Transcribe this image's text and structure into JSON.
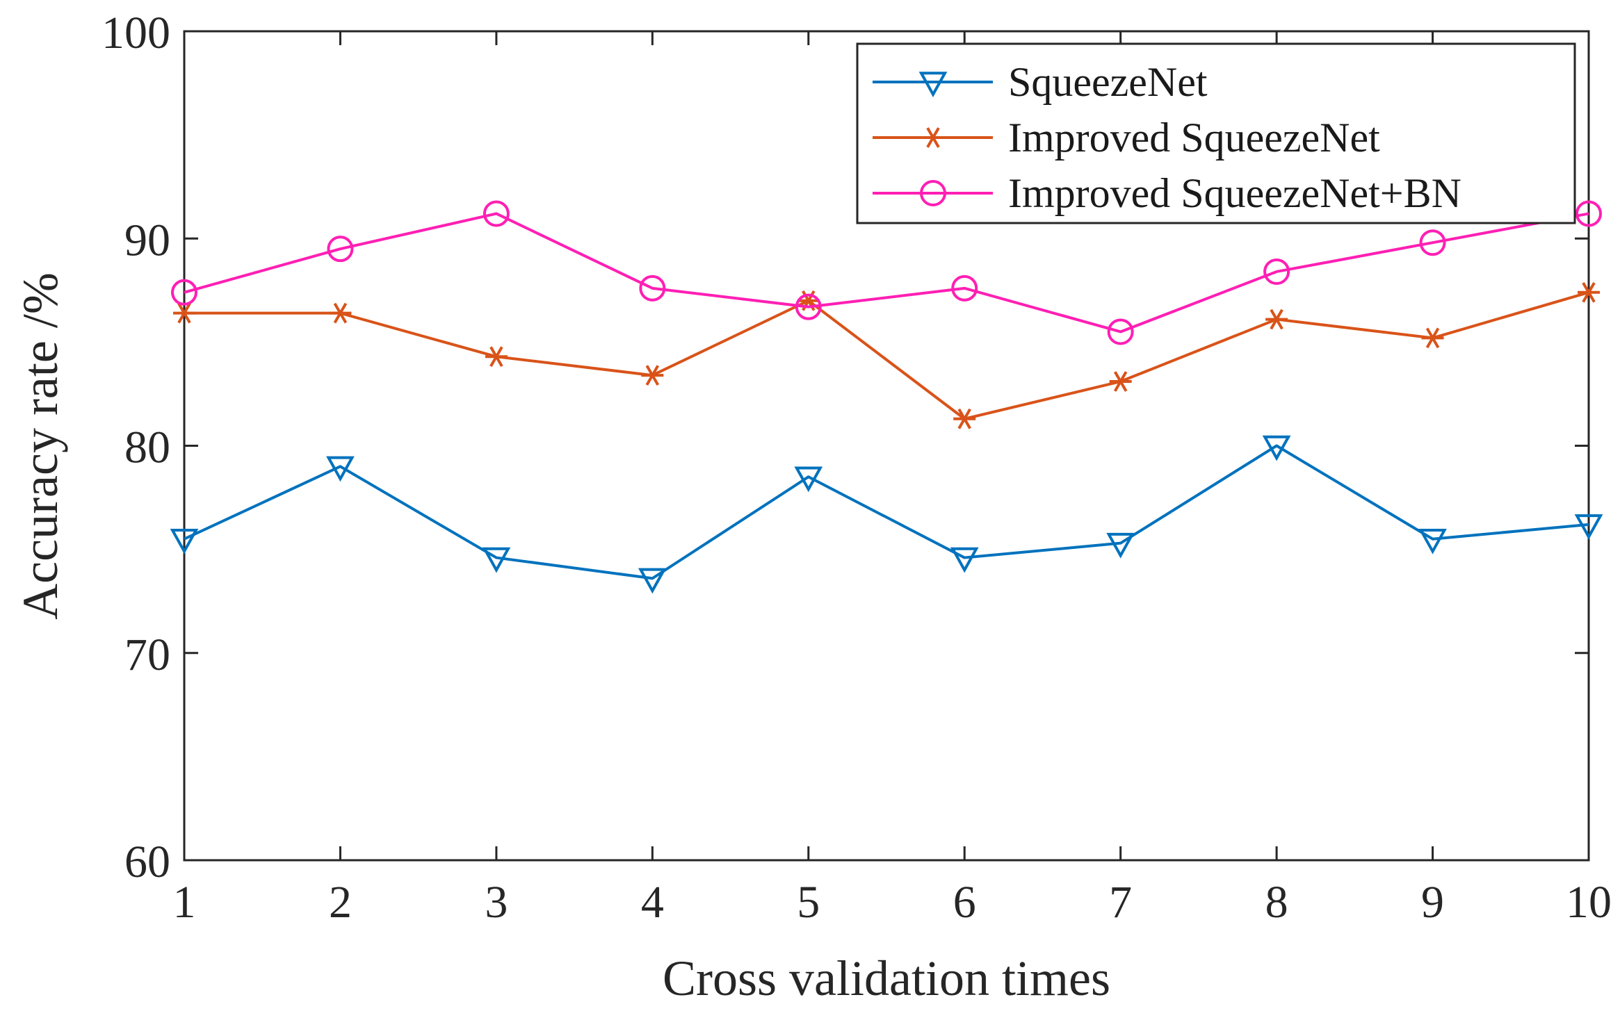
{
  "chart_data": {
    "type": "line",
    "xlabel": "Cross validation times",
    "ylabel": "Accuracy rate /%",
    "xlim": [
      1,
      10
    ],
    "ylim": [
      60,
      100
    ],
    "xticks": [
      1,
      2,
      3,
      4,
      5,
      6,
      7,
      8,
      9,
      10
    ],
    "yticks": [
      60,
      70,
      80,
      90,
      100
    ],
    "x": [
      1,
      2,
      3,
      4,
      5,
      6,
      7,
      8,
      9,
      10
    ],
    "legend_position": "top-right",
    "series": [
      {
        "name": "SqueezeNet",
        "color": "#0072BD",
        "marker": "triangle-down",
        "values": [
          75.5,
          79.0,
          74.6,
          73.6,
          78.5,
          74.6,
          75.3,
          80.0,
          75.5,
          76.2
        ]
      },
      {
        "name": "Improved SqueezeNet",
        "color": "#D95319",
        "marker": "asterisk",
        "values": [
          86.4,
          86.4,
          84.3,
          83.4,
          87.0,
          81.3,
          83.1,
          86.1,
          85.2,
          87.4
        ]
      },
      {
        "name": "Improved SqueezeNet+BN",
        "color": "#FF1FB4",
        "marker": "circle",
        "values": [
          87.4,
          89.5,
          91.2,
          87.6,
          86.7,
          87.6,
          85.5,
          88.4,
          89.8,
          91.2
        ]
      }
    ]
  }
}
